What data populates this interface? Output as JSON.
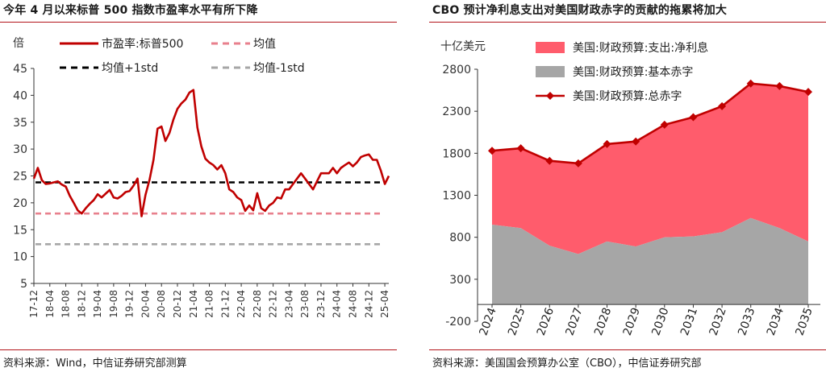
{
  "left": {
    "title": "今年 4 月以来标普 500 指数市盈率水平有所下降",
    "source": "资料来源：Wind，中信证券研究部测算"
  },
  "right": {
    "title": "CBO 预计净利息支出对美国财政赤字的贡献的拖累将加大",
    "source": "资料来源：美国国会预算办公室（CBO），中信证券研究部"
  },
  "chart_data": [
    {
      "type": "line",
      "title": "今年 4 月以来标普 500 指数市盈率水平有所下降",
      "ylabel": "倍",
      "ylim": [
        5,
        45
      ],
      "yticks": [
        5,
        10,
        15,
        20,
        25,
        30,
        35,
        40,
        45
      ],
      "x_start": "2017-12",
      "x_end": "2025-05",
      "xticks": [
        "17-12",
        "18-04",
        "18-08",
        "18-12",
        "19-04",
        "19-08",
        "19-12",
        "20-04",
        "20-08",
        "20-12",
        "21-04",
        "21-08",
        "21-12",
        "22-04",
        "22-08",
        "22-12",
        "23-04",
        "23-08",
        "23-12",
        "24-04",
        "24-08",
        "24-12",
        "25-04"
      ],
      "legend": "top-left",
      "grid": false,
      "series": [
        {
          "name": "市盈率:标普500",
          "style": "solid",
          "color": "#c00000",
          "x": [
            "2017-12",
            "2018-01",
            "2018-02",
            "2018-03",
            "2018-04",
            "2018-05",
            "2018-06",
            "2018-07",
            "2018-08",
            "2018-09",
            "2018-10",
            "2018-11",
            "2018-12",
            "2019-01",
            "2019-02",
            "2019-03",
            "2019-04",
            "2019-05",
            "2019-06",
            "2019-07",
            "2019-08",
            "2019-09",
            "2019-10",
            "2019-11",
            "2019-12",
            "2020-01",
            "2020-02",
            "2020-03",
            "2020-04",
            "2020-05",
            "2020-06",
            "2020-07",
            "2020-08",
            "2020-09",
            "2020-10",
            "2020-11",
            "2020-12",
            "2021-01",
            "2021-02",
            "2021-03",
            "2021-04",
            "2021-05",
            "2021-06",
            "2021-07",
            "2021-08",
            "2021-09",
            "2021-10",
            "2021-11",
            "2021-12",
            "2022-01",
            "2022-02",
            "2022-03",
            "2022-04",
            "2022-05",
            "2022-06",
            "2022-07",
            "2022-08",
            "2022-09",
            "2022-10",
            "2022-11",
            "2022-12",
            "2023-01",
            "2023-02",
            "2023-03",
            "2023-04",
            "2023-05",
            "2023-06",
            "2023-07",
            "2023-08",
            "2023-09",
            "2023-10",
            "2023-11",
            "2023-12",
            "2024-01",
            "2024-02",
            "2024-03",
            "2024-04",
            "2024-05",
            "2024-06",
            "2024-07",
            "2024-08",
            "2024-09",
            "2024-10",
            "2024-11",
            "2024-12",
            "2025-01",
            "2025-02",
            "2025-03",
            "2025-04",
            "2025-05"
          ],
          "values": [
            24.5,
            26.5,
            24.2,
            23.5,
            23.6,
            23.8,
            24.0,
            23.4,
            23.0,
            21.3,
            20.0,
            18.6,
            18.0,
            19.0,
            19.8,
            20.5,
            21.6,
            21.0,
            21.7,
            22.4,
            21.0,
            20.8,
            21.3,
            22.0,
            22.2,
            23.2,
            24.5,
            17.5,
            21.5,
            24.3,
            28.0,
            33.8,
            34.2,
            31.5,
            33.0,
            35.5,
            37.5,
            38.5,
            39.2,
            40.5,
            41.0,
            34.0,
            30.5,
            28.2,
            27.5,
            27.0,
            26.2,
            27.0,
            25.5,
            22.5,
            22.0,
            21.0,
            20.5,
            18.5,
            19.5,
            18.6,
            21.8,
            19.0,
            18.5,
            19.5,
            20.0,
            21.0,
            20.8,
            22.5,
            22.5,
            23.5,
            24.5,
            25.5,
            24.5,
            23.5,
            22.5,
            24.0,
            25.5,
            25.5,
            25.5,
            26.5,
            25.5,
            26.5,
            27.0,
            27.5,
            26.8,
            27.5,
            28.5,
            28.8,
            29.0,
            28.0,
            28.0,
            26.0,
            23.5,
            25.0
          ]
        },
        {
          "name": "均值",
          "style": "dashed",
          "color": "#e8808d",
          "values": [
            18.0
          ]
        },
        {
          "name": "均值+1std",
          "style": "dashed",
          "color": "#000000",
          "values": [
            23.8
          ]
        },
        {
          "name": "均值-1std",
          "style": "dashed",
          "color": "#a6a6a6",
          "values": [
            12.3
          ]
        }
      ]
    },
    {
      "type": "area",
      "title": "CBO 预计净利息支出对美国财政赤字的贡献的拖累将加大",
      "ylabel": "十亿美元",
      "ylim": [
        -200,
        2800
      ],
      "yticks": [
        -200,
        300,
        800,
        1300,
        1800,
        2300,
        2800
      ],
      "categories": [
        "2024",
        "2025",
        "2026",
        "2027",
        "2028",
        "2029",
        "2030",
        "2031",
        "2032",
        "2033",
        "2034",
        "2035"
      ],
      "legend": "top-left",
      "grid": false,
      "series": [
        {
          "name": "美国:财政预算:支出:净利息",
          "kind": "area",
          "color": "#ff5c6c",
          "values": [
            880,
            950,
            1010,
            1080,
            1160,
            1250,
            1340,
            1420,
            1500,
            1600,
            1690,
            1780
          ]
        },
        {
          "name": "美国:财政预算:基本赤字",
          "kind": "area",
          "color": "#a6a6a6",
          "values": [
            950,
            910,
            700,
            600,
            750,
            690,
            800,
            810,
            860,
            1030,
            910,
            750
          ]
        },
        {
          "name": "美国:财政预算:总赤字",
          "kind": "line",
          "color": "#c00000",
          "values": [
            1830,
            1860,
            1710,
            1680,
            1910,
            1940,
            2140,
            2230,
            2360,
            2630,
            2600,
            2530
          ]
        }
      ]
    }
  ]
}
